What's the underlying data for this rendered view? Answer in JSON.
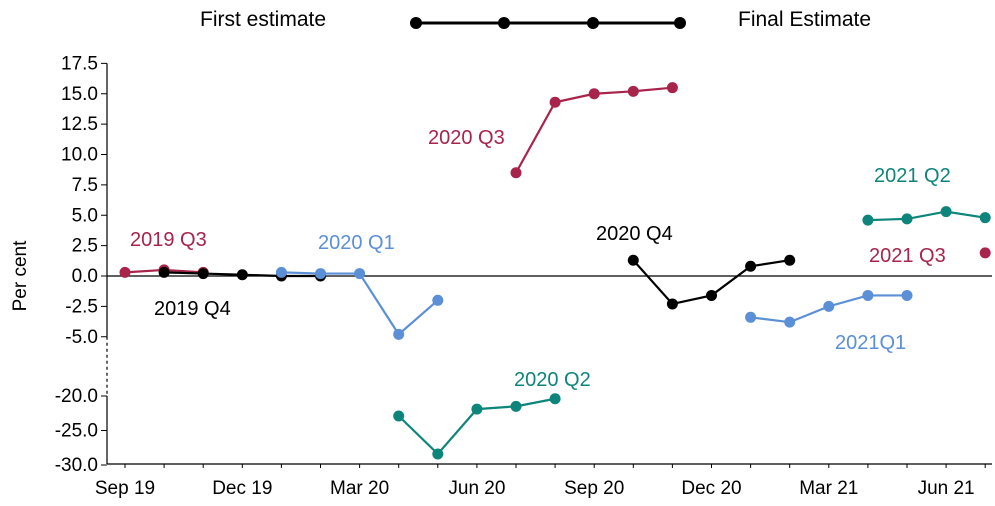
{
  "legend": {
    "first_label": "First estimate",
    "final_label": "Final Estimate"
  },
  "chart_data": {
    "type": "line",
    "title": "",
    "xlabel": "",
    "ylabel": "Per cent",
    "y_axis_break": "-5.0 to -20.0 (broken axis)",
    "ylim_upper": [
      -5.0,
      17.5
    ],
    "ylim_lower": [
      -30.0,
      -20.0
    ],
    "y_ticks": [
      "17.5",
      "15.0",
      "12.5",
      "10.0",
      "7.5",
      "5.0",
      "2.5",
      "0.0",
      "-2.5",
      "-5.0",
      "-20.0",
      "-25.0",
      "-30.0"
    ],
    "x_ticks": [
      "Sep 19",
      "Dec 19",
      "Mar 20",
      "Jun 20",
      "Sep 20",
      "Dec 20",
      "Mar 21",
      "Jun 21"
    ],
    "colors": {
      "crimson": "#a8244a",
      "black": "#000000",
      "blue": "#5b8fd6",
      "teal": "#0e857a"
    },
    "series": [
      {
        "label": "2019 Q3",
        "color": "crimson",
        "x": [
          "Sep 19",
          "Oct 19",
          "Nov 19"
        ],
        "y": [
          0.3,
          0.5,
          0.3
        ]
      },
      {
        "label": "2019 Q4",
        "color": "black",
        "x": [
          "Oct 19",
          "Nov 19",
          "Dec 19",
          "Jan 20",
          "Feb 20"
        ],
        "y": [
          0.3,
          0.2,
          0.1,
          0.0,
          0.0
        ]
      },
      {
        "label": "2020 Q1",
        "color": "blue",
        "x": [
          "Jan 20",
          "Feb 20",
          "Mar 20",
          "Apr 20",
          "May 20"
        ],
        "y": [
          0.3,
          0.2,
          0.2,
          -4.8,
          -2.0
        ]
      },
      {
        "label": "2020 Q2",
        "color": "teal",
        "x": [
          "Apr 20",
          "May 20",
          "Jun 20",
          "Jul 20",
          "Aug 20"
        ],
        "y": [
          -22.9,
          -28.4,
          -21.9,
          -21.5,
          -20.4
        ]
      },
      {
        "label": "2020 Q3",
        "color": "crimson",
        "x": [
          "Jul 20",
          "Aug 20",
          "Sep 20",
          "Oct 20",
          "Nov 20"
        ],
        "y": [
          8.5,
          14.3,
          15.0,
          15.2,
          15.5
        ]
      },
      {
        "label": "2020 Q4",
        "color": "black",
        "x": [
          "Oct 20",
          "Nov 20",
          "Dec 20",
          "Jan 21",
          "Feb 21"
        ],
        "y": [
          1.3,
          -2.3,
          -1.6,
          0.8,
          1.3
        ]
      },
      {
        "label": "2021Q1",
        "color": "blue",
        "x": [
          "Jan 21",
          "Feb 21",
          "Mar 21",
          "Apr 21",
          "May 21"
        ],
        "y": [
          -3.4,
          -3.8,
          -2.5,
          -1.6,
          -1.6
        ]
      },
      {
        "label": "2021 Q2",
        "color": "teal",
        "x": [
          "Apr 21",
          "May 21",
          "Jun 21",
          "Jul 21"
        ],
        "y": [
          4.6,
          4.7,
          5.3,
          4.8
        ]
      },
      {
        "label": "2021 Q3",
        "color": "crimson",
        "x": [
          "Jul 21"
        ],
        "y": [
          1.9
        ]
      }
    ]
  }
}
